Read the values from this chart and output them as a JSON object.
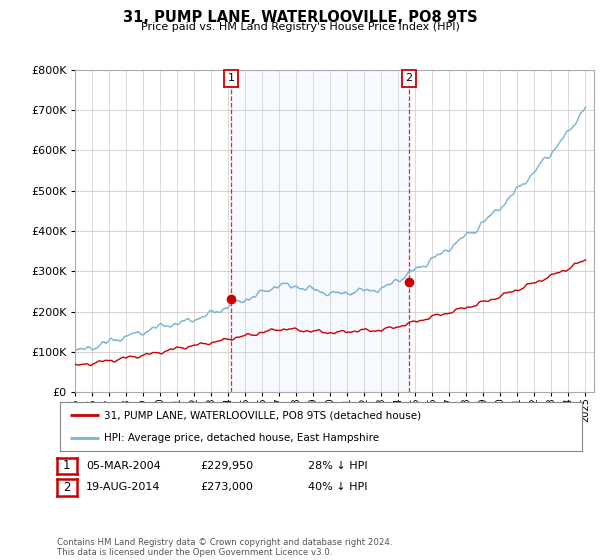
{
  "title": "31, PUMP LANE, WATERLOOVILLE, PO8 9TS",
  "subtitle": "Price paid vs. HM Land Registry's House Price Index (HPI)",
  "ylim": [
    0,
    800000
  ],
  "xlim_start": 1995.0,
  "xlim_end": 2025.5,
  "hpi_color": "#7ab3d4",
  "price_color": "#cc0000",
  "shading_color": "#ddeeff",
  "marker1_date": 2004.17,
  "marker1_price": 229950,
  "marker1_label": "1",
  "marker2_date": 2014.63,
  "marker2_price": 273000,
  "marker2_label": "2",
  "legend_line1": "31, PUMP LANE, WATERLOOVILLE, PO8 9TS (detached house)",
  "legend_line2": "HPI: Average price, detached house, East Hampshire",
  "footer": "Contains HM Land Registry data © Crown copyright and database right 2024.\nThis data is licensed under the Open Government Licence v3.0.",
  "background_color": "#ffffff",
  "grid_color": "#cccccc"
}
